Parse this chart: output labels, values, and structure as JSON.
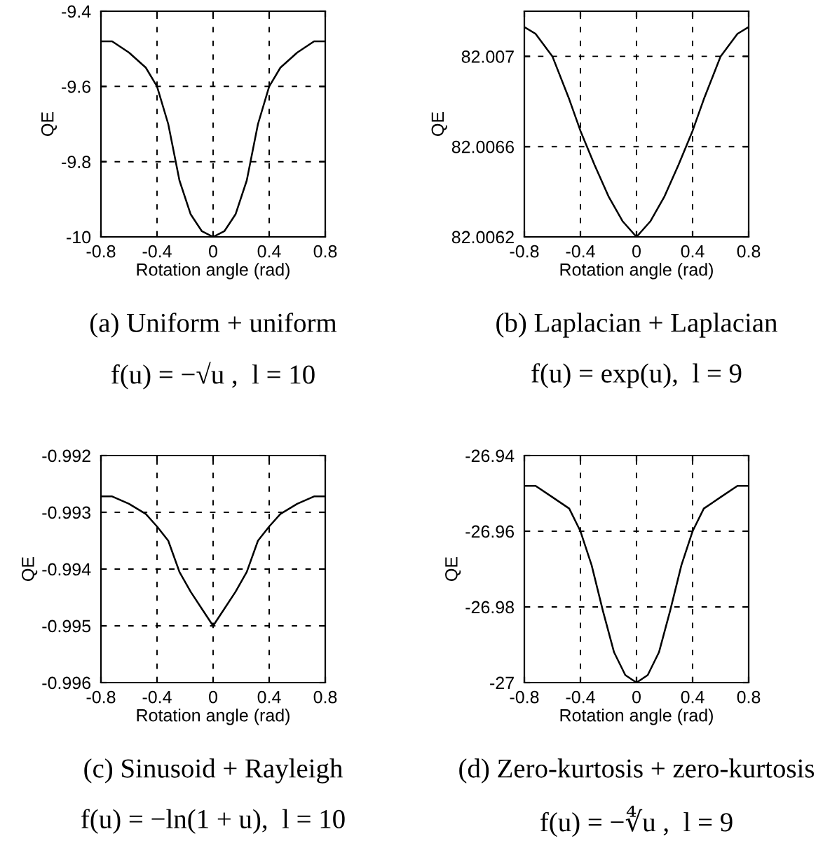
{
  "chart_data": [
    {
      "type": "line",
      "xlabel": "Rotation angle (rad)",
      "ylabel": "QE",
      "color": "#000000",
      "grid": true,
      "line_style": "solid",
      "x": [
        -0.8,
        -0.72,
        -0.6,
        -0.48,
        -0.4,
        -0.32,
        -0.24,
        -0.16,
        -0.08,
        0,
        0.08,
        0.16,
        0.24,
        0.32,
        0.4,
        0.48,
        0.6,
        0.72,
        0.8
      ],
      "values": [
        -9.48,
        -9.48,
        -9.51,
        -9.55,
        -9.6,
        -9.7,
        -9.85,
        -9.94,
        -9.985,
        -10,
        -9.985,
        -9.94,
        -9.85,
        -9.7,
        -9.6,
        -9.55,
        -9.51,
        -9.48,
        -9.48
      ],
      "xlim": [
        -0.8,
        0.8
      ],
      "ylim": [
        -10,
        -9.4
      ],
      "xticks": [
        -0.8,
        -0.4,
        0,
        0.4,
        0.8
      ],
      "yticks": [
        -10,
        -9.8,
        -9.6,
        -9.4
      ],
      "annotations": [
        "(a) Uniform + uniform",
        "f(u) = −√u ,  l = 10"
      ]
    },
    {
      "type": "line",
      "xlabel": "Rotation angle (rad)",
      "ylabel": "QE",
      "color": "#000000",
      "grid": true,
      "line_style": "solid",
      "x": [
        -0.8,
        -0.72,
        -0.6,
        -0.48,
        -0.4,
        -0.3,
        -0.2,
        -0.1,
        0,
        0.1,
        0.2,
        0.3,
        0.4,
        0.48,
        0.6,
        0.72,
        0.8
      ],
      "values": [
        82.00713,
        82.0071,
        82.007,
        82.00681,
        82.00667,
        82.00652,
        82.00638,
        82.00627,
        82.0062,
        82.00627,
        82.00638,
        82.00652,
        82.00667,
        82.00681,
        82.007,
        82.0071,
        82.00713
      ],
      "xlim": [
        -0.8,
        0.8
      ],
      "ylim": [
        82.0062,
        82.0072
      ],
      "xticks": [
        -0.8,
        -0.4,
        0,
        0.4,
        0.8
      ],
      "yticks": [
        82.0062,
        82.0066,
        82.007
      ],
      "annotations": [
        "(b) Laplacian + Laplacian",
        "f(u) = exp(u),  l = 9"
      ]
    },
    {
      "type": "line",
      "xlabel": "Rotation angle (rad)",
      "ylabel": "QE",
      "color": "#000000",
      "grid": true,
      "line_style": "solid",
      "x": [
        -0.8,
        -0.72,
        -0.6,
        -0.48,
        -0.4,
        -0.32,
        -0.24,
        -0.16,
        -0.08,
        0,
        0.08,
        0.16,
        0.24,
        0.32,
        0.4,
        0.48,
        0.6,
        0.72,
        0.8
      ],
      "values": [
        -0.99272,
        -0.99272,
        -0.99285,
        -0.99303,
        -0.99325,
        -0.9935,
        -0.99405,
        -0.9944,
        -0.9947,
        -0.995,
        -0.9947,
        -0.9944,
        -0.99405,
        -0.9935,
        -0.99325,
        -0.99303,
        -0.99285,
        -0.99272,
        -0.99272
      ],
      "xlim": [
        -0.8,
        0.8
      ],
      "ylim": [
        -0.996,
        -0.992
      ],
      "xticks": [
        -0.8,
        -0.4,
        0,
        0.4,
        0.8
      ],
      "yticks": [
        -0.996,
        -0.995,
        -0.994,
        -0.993,
        -0.992
      ],
      "annotations": [
        "(c) Sinusoid + Rayleigh",
        "f(u) = −ln(1 + u),  l = 10"
      ]
    },
    {
      "type": "line",
      "xlabel": "Rotation angle (rad)",
      "ylabel": "QE",
      "color": "#000000",
      "grid": true,
      "line_style": "solid",
      "x": [
        -0.8,
        -0.72,
        -0.6,
        -0.48,
        -0.4,
        -0.32,
        -0.24,
        -0.16,
        -0.08,
        0,
        0.08,
        0.16,
        0.24,
        0.32,
        0.4,
        0.48,
        0.6,
        0.72,
        0.8
      ],
      "values": [
        -26.948,
        -26.948,
        -26.951,
        -26.954,
        -26.96,
        -26.969,
        -26.981,
        -26.992,
        -26.998,
        -27,
        -26.998,
        -26.992,
        -26.981,
        -26.969,
        -26.96,
        -26.954,
        -26.951,
        -26.948,
        -26.948
      ],
      "xlim": [
        -0.8,
        0.8
      ],
      "ylim": [
        -27,
        -26.94
      ],
      "xticks": [
        -0.8,
        -0.4,
        0,
        0.4,
        0.8
      ],
      "yticks": [
        -27,
        -26.98,
        -26.96,
        -26.94
      ],
      "annotations": [
        "(d) Zero-kurtosis + zero-kurtosis",
        "f(u) = −∜u ,  l = 9"
      ]
    }
  ]
}
